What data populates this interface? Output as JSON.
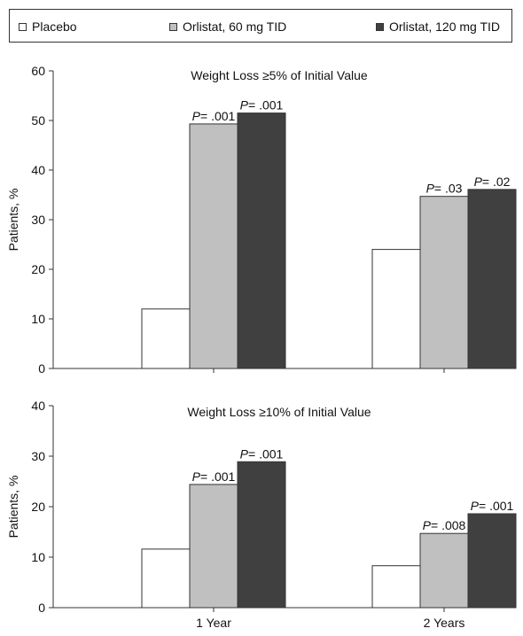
{
  "legend": {
    "items": [
      {
        "label": "Placebo",
        "color": "#ffffff"
      },
      {
        "label": "Orlistat, 60 mg TID",
        "color": "#c0c0c0"
      },
      {
        "label": "Orlistat, 120 mg TID",
        "color": "#404040"
      }
    ]
  },
  "chart_data": [
    {
      "type": "bar",
      "title": "Weight Loss ≥5% of Initial Value",
      "ylabel": "Patients, %",
      "ylim": [
        0,
        60
      ],
      "yticks": [
        0,
        10,
        20,
        30,
        40,
        50,
        60
      ],
      "categories": [
        "1 Year",
        "2 Years"
      ],
      "show_category_labels": false,
      "series": [
        {
          "name": "Placebo",
          "color": "#ffffff",
          "values": [
            12,
            24
          ]
        },
        {
          "name": "Orlistat, 60 mg TID",
          "color": "#c0c0c0",
          "values": [
            49.3,
            34.7
          ]
        },
        {
          "name": "Orlistat, 120 mg TID",
          "color": "#404040",
          "values": [
            51.5,
            36.1
          ]
        }
      ],
      "annotations": [
        [
          "",
          "",
          ""
        ],
        [
          "= .001",
          "= .03",
          ""
        ],
        [
          "= .001",
          "= .02",
          ""
        ]
      ]
    },
    {
      "type": "bar",
      "title": "Weight Loss ≥10% of Initial Value",
      "ylabel": "Patients, %",
      "ylim": [
        0,
        40
      ],
      "yticks": [
        0,
        10,
        20,
        30,
        40
      ],
      "categories": [
        "1 Year",
        "2 Years"
      ],
      "show_category_labels": true,
      "series": [
        {
          "name": "Placebo",
          "color": "#ffffff",
          "values": [
            11.6,
            8.3
          ]
        },
        {
          "name": "Orlistat, 60 mg TID",
          "color": "#c0c0c0",
          "values": [
            24.4,
            14.7
          ]
        },
        {
          "name": "Orlistat, 120 mg TID",
          "color": "#404040",
          "values": [
            28.9,
            18.6
          ]
        }
      ],
      "annotations": [
        [
          "",
          ""
        ],
        [
          "= .001",
          "= .008"
        ],
        [
          "= .001",
          "= .001"
        ]
      ]
    }
  ],
  "p_label": "P"
}
